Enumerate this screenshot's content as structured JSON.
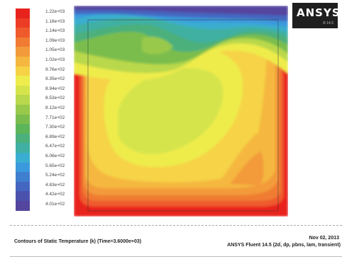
{
  "legend": {
    "labels": [
      "1.22e+03",
      "1.18e+03",
      "1.14e+03",
      "1.09e+03",
      "1.05e+03",
      "1.02e+03",
      "9.76e+02",
      "9.35e+02",
      "8.94e+02",
      "8.53e+02",
      "8.12e+02",
      "7.71e+02",
      "7.30e+02",
      "6.89e+02",
      "6.47e+02",
      "6.06e+02",
      "5.65e+02",
      "5.24e+02",
      "4.83e+02",
      "4.42e+02",
      "4.01e+02"
    ],
    "colors": [
      "#e8231e",
      "#ec3c25",
      "#ef5a2d",
      "#f07b33",
      "#f39a3a",
      "#f5b73f",
      "#f6d346",
      "#eeec4c",
      "#d6e44c",
      "#b9d84c",
      "#98c94b",
      "#7abd4d",
      "#5db55a",
      "#4cb07c",
      "#3fb0a3",
      "#3aaed0",
      "#3b99dd",
      "#3f7fd0",
      "#4466c0",
      "#4b52ad",
      "#54459e"
    ]
  },
  "logo": {
    "text": "ANSYS",
    "subtext": "R 14.5"
  },
  "caption": {
    "title": "Contours of Static Temperature (k)  (Time=3.6000e+03)",
    "date": "Nov 02, 2013",
    "software": "ANSYS Fluent 14.5 (2d, dp, pbns, lam, transient)"
  }
}
